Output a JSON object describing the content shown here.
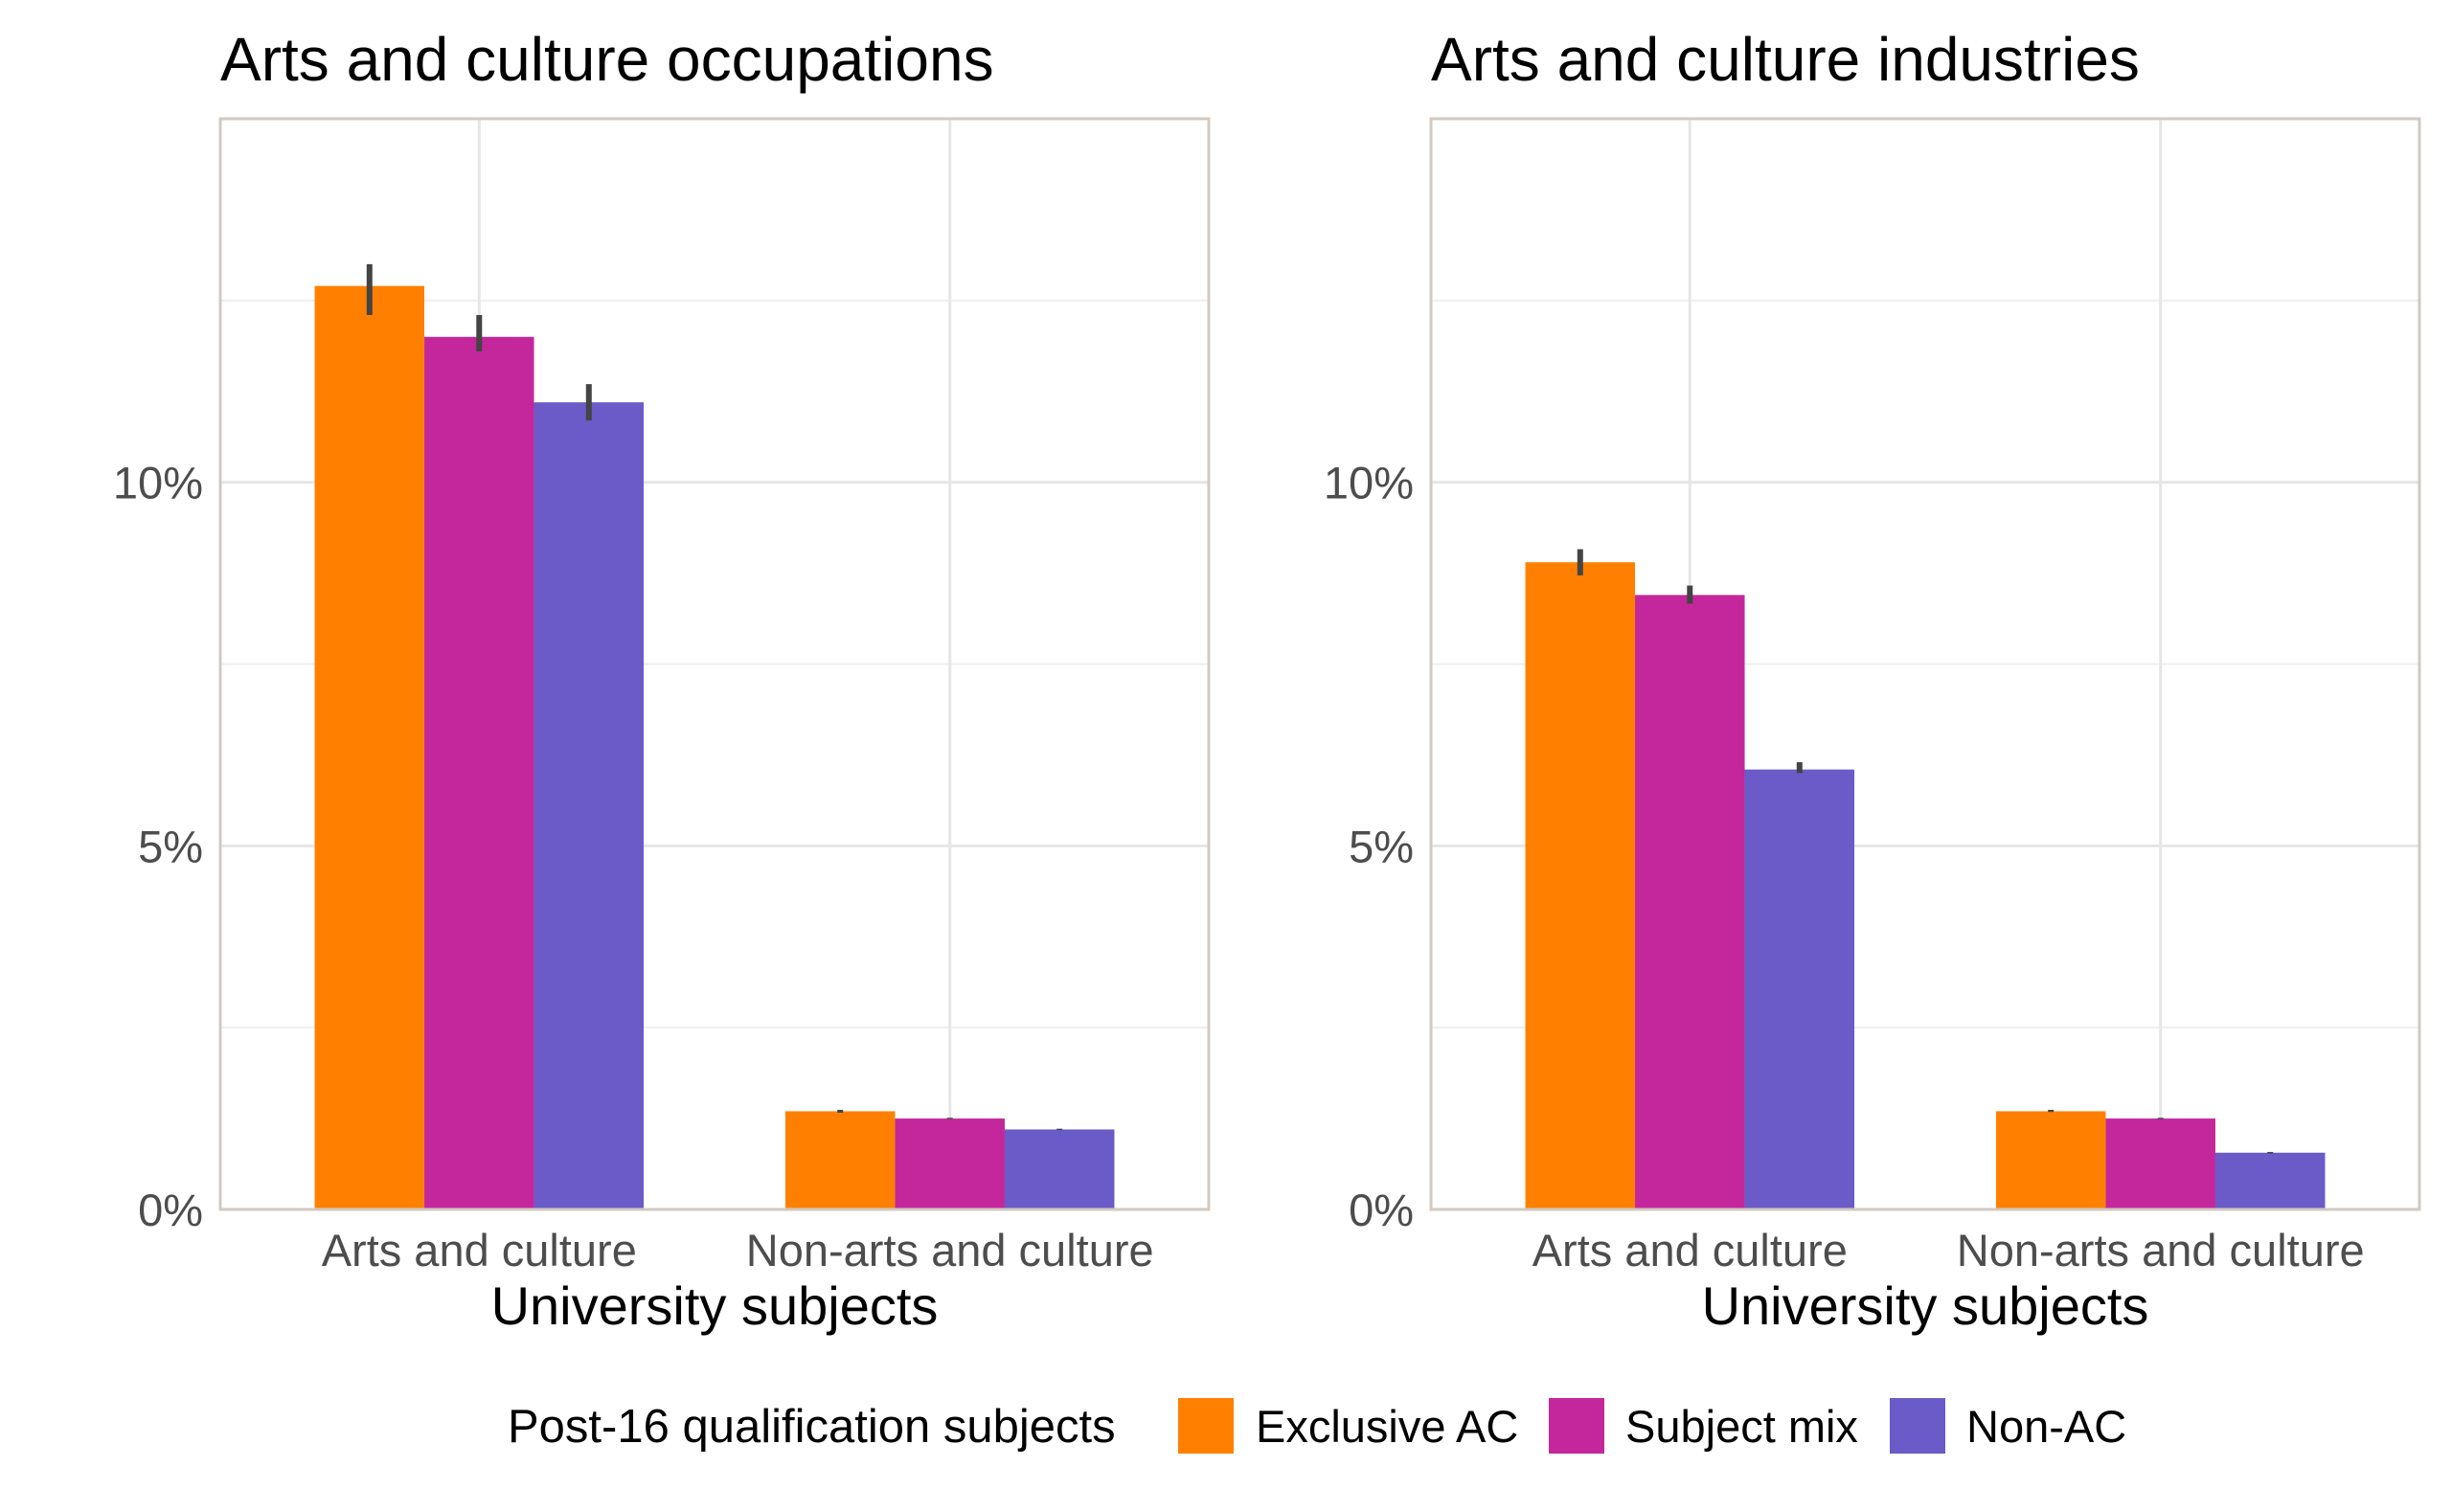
{
  "legend": {
    "title": "Post-16 qualification subjects",
    "items": [
      {
        "label": "Exclusive AC",
        "color": "#FF8000"
      },
      {
        "label": "Subject mix",
        "color": "#C4279B"
      },
      {
        "label": "Non-AC",
        "color": "#6A5BC8"
      }
    ],
    "position": "bottom"
  },
  "chart_data": [
    {
      "type": "bar",
      "title": "Arts and culture occupations",
      "xlabel": "University subjects",
      "ylabel": "",
      "categories": [
        "Arts and culture",
        "Non-arts and culture"
      ],
      "ylim": [
        0,
        15
      ],
      "yticks": [
        0,
        5,
        10
      ],
      "ytick_labels": [
        "0%",
        "5%",
        "10%"
      ],
      "grid": true,
      "series": [
        {
          "name": "Exclusive AC",
          "color": "#FF8000",
          "values": [
            12.7,
            1.35
          ],
          "err_low": [
            12.3,
            1.33
          ],
          "err_high": [
            13.0,
            1.37
          ]
        },
        {
          "name": "Subject mix",
          "color": "#C4279B",
          "values": [
            12.0,
            1.25
          ],
          "err_low": [
            11.8,
            1.24
          ],
          "err_high": [
            12.3,
            1.26
          ]
        },
        {
          "name": "Non-AC",
          "color": "#6A5BC8",
          "values": [
            11.1,
            1.1
          ],
          "err_low": [
            10.85,
            1.09
          ],
          "err_high": [
            11.35,
            1.11
          ]
        }
      ]
    },
    {
      "type": "bar",
      "title": "Arts and culture industries",
      "xlabel": "University subjects",
      "ylabel": "",
      "categories": [
        "Arts and culture",
        "Non-arts and culture"
      ],
      "ylim": [
        0,
        15
      ],
      "yticks": [
        0,
        5,
        10
      ],
      "ytick_labels": [
        "0%",
        "5%",
        "10%"
      ],
      "grid": true,
      "series": [
        {
          "name": "Exclusive AC",
          "color": "#FF8000",
          "values": [
            8.9,
            1.35
          ],
          "err_low": [
            8.72,
            1.34
          ],
          "err_high": [
            9.08,
            1.37
          ]
        },
        {
          "name": "Subject mix",
          "color": "#C4279B",
          "values": [
            8.45,
            1.25
          ],
          "err_low": [
            8.33,
            1.24
          ],
          "err_high": [
            8.58,
            1.26
          ]
        },
        {
          "name": "Non-AC",
          "color": "#6A5BC8",
          "values": [
            6.05,
            0.78
          ],
          "err_low": [
            6.0,
            0.77
          ],
          "err_high": [
            6.15,
            0.79
          ]
        }
      ]
    }
  ]
}
